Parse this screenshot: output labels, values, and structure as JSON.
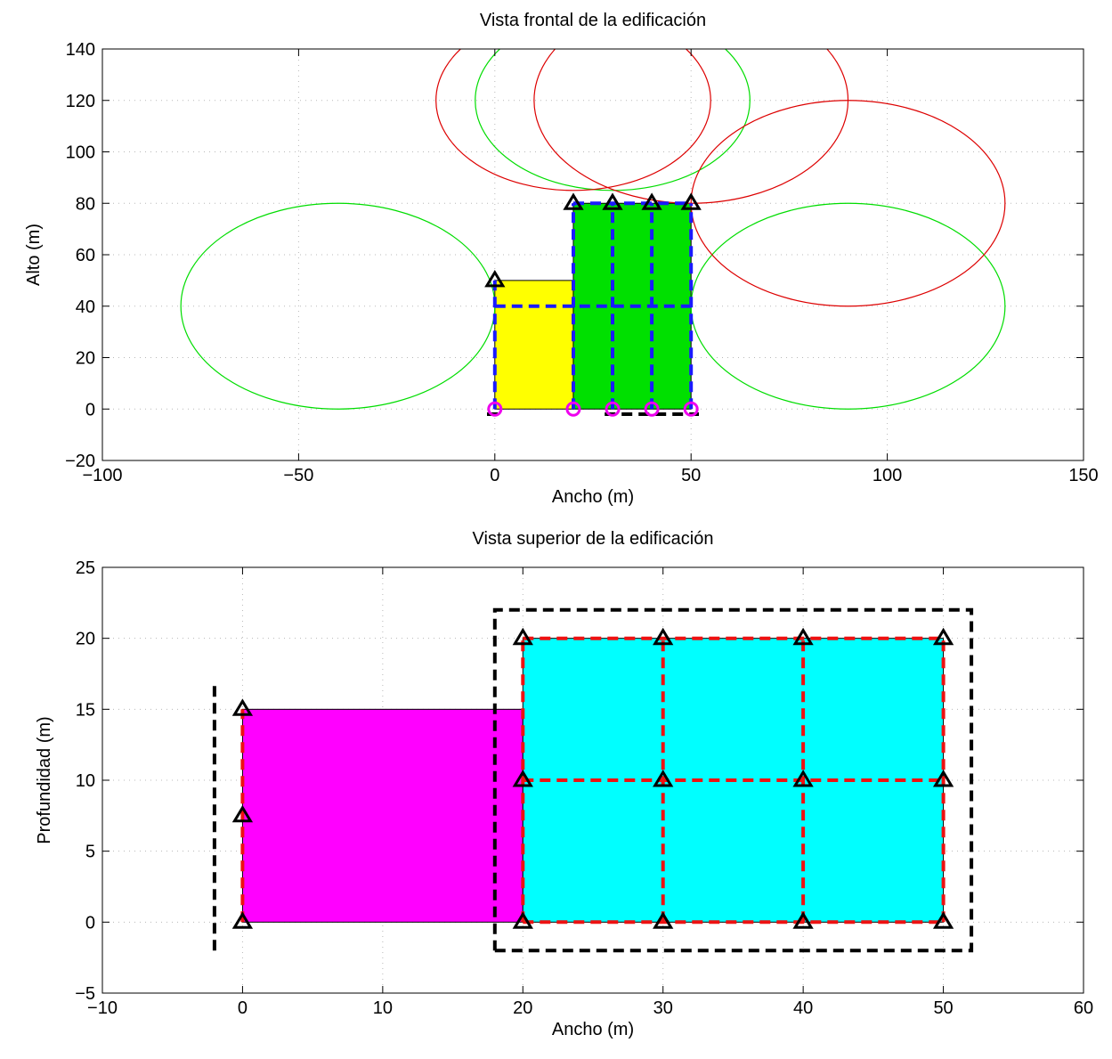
{
  "chart_data": [
    {
      "type": "scatter",
      "title": "Vista frontal de la edificación",
      "xlabel": "Ancho  (m)",
      "ylabel": "Alto  (m)",
      "xlim": [
        -100,
        150
      ],
      "ylim": [
        -20,
        140
      ],
      "xticks": [
        -100,
        -50,
        0,
        50,
        100,
        150
      ],
      "yticks": [
        -20,
        0,
        20,
        40,
        60,
        80,
        100,
        120,
        140
      ],
      "xtick_labels": [
        "−100",
        "−50",
        "0",
        "50",
        "100",
        "150"
      ],
      "ytick_labels": [
        "−20",
        "0",
        "20",
        "40",
        "60",
        "80",
        "100",
        "120",
        "140"
      ],
      "grid": true,
      "rects": [
        {
          "x": [
            0,
            20
          ],
          "y": [
            0,
            50
          ],
          "fill": "#ffff00"
        },
        {
          "x": [
            20,
            50
          ],
          "y": [
            0,
            80
          ],
          "fill": "#00e000"
        }
      ],
      "dashed_lines": [
        {
          "points": [
            [
              0,
              0
            ],
            [
              0,
              50
            ]
          ],
          "color": "#1a1aff"
        },
        {
          "points": [
            [
              0,
              40
            ],
            [
              50,
              40
            ]
          ],
          "color": "#1a1aff"
        },
        {
          "points": [
            [
              20,
              0
            ],
            [
              20,
              80
            ]
          ],
          "color": "#1a1aff"
        },
        {
          "points": [
            [
              30,
              0
            ],
            [
              30,
              80
            ]
          ],
          "color": "#1a1aff"
        },
        {
          "points": [
            [
              40,
              0
            ],
            [
              40,
              80
            ]
          ],
          "color": "#1a1aff"
        },
        {
          "points": [
            [
              50,
              0
            ],
            [
              50,
              80
            ]
          ],
          "color": "#1a1aff"
        },
        {
          "points": [
            [
              20,
              80
            ],
            [
              50,
              80
            ]
          ],
          "color": "#1a1aff"
        },
        {
          "points": [
            [
              -2,
              -2
            ],
            [
              1,
              -2
            ]
          ],
          "color": "#000000"
        },
        {
          "points": [
            [
              28,
              -2
            ],
            [
              52,
              -2
            ]
          ],
          "color": "#000000"
        }
      ],
      "ellipses": [
        {
          "cx": -40,
          "cy": 40,
          "rx": 40,
          "ry": 40,
          "color": "#00dd00"
        },
        {
          "cx": 90,
          "cy": 40,
          "rx": 40,
          "ry": 40,
          "color": "#00dd00"
        },
        {
          "cx": 30,
          "cy": 120,
          "rx": 35,
          "ry": 35,
          "color": "#00dd00"
        },
        {
          "cx": 20,
          "cy": 120,
          "rx": 35,
          "ry": 35,
          "color": "#dd0000"
        },
        {
          "cx": 50,
          "cy": 120,
          "rx": 40,
          "ry": 40,
          "color": "#dd0000"
        },
        {
          "cx": 90,
          "cy": 80,
          "rx": 40,
          "ry": 40,
          "color": "#dd0000"
        }
      ],
      "circle_markers": {
        "x": [
          0,
          20,
          30,
          40,
          50
        ],
        "y": [
          0,
          0,
          0,
          0,
          0
        ],
        "color": "#ee00ee"
      },
      "triangle_markers": {
        "x": [
          0,
          20,
          30,
          40,
          50
        ],
        "y": [
          50,
          80,
          80,
          80,
          80
        ],
        "color": "#000000"
      }
    },
    {
      "type": "scatter",
      "title": "Vista superior de la edificación",
      "xlabel": "Ancho  (m)",
      "ylabel": "Profundidad  (m)",
      "xlim": [
        -10,
        60
      ],
      "ylim": [
        -5,
        25
      ],
      "xticks": [
        -10,
        0,
        10,
        20,
        30,
        40,
        50,
        60
      ],
      "yticks": [
        -5,
        0,
        5,
        10,
        15,
        20,
        25
      ],
      "xtick_labels": [
        "−10",
        "0",
        "10",
        "20",
        "30",
        "40",
        "50",
        "60"
      ],
      "ytick_labels": [
        "−5",
        "0",
        "5",
        "10",
        "15",
        "20",
        "25"
      ],
      "grid": true,
      "rects": [
        {
          "x": [
            0,
            20
          ],
          "y": [
            0,
            15
          ],
          "fill": "#ff00ff"
        },
        {
          "x": [
            20,
            50
          ],
          "y": [
            0,
            20
          ],
          "fill": "#00ffff"
        }
      ],
      "dashed_lines": [
        {
          "points": [
            [
              -2,
              -2
            ],
            [
              -2,
              17
            ]
          ],
          "color": "#000000"
        },
        {
          "points": [
            [
              18,
              -2
            ],
            [
              52,
              -2
            ],
            [
              52,
              22
            ],
            [
              18,
              22
            ],
            [
              18,
              -2
            ]
          ],
          "color": "#000000"
        },
        {
          "points": [
            [
              0,
              0
            ],
            [
              0,
              15
            ]
          ],
          "color": "#ee1111"
        },
        {
          "points": [
            [
              20,
              0
            ],
            [
              50,
              0
            ]
          ],
          "color": "#ee1111"
        },
        {
          "points": [
            [
              20,
              10
            ],
            [
              50,
              10
            ]
          ],
          "color": "#ee1111"
        },
        {
          "points": [
            [
              20,
              20
            ],
            [
              50,
              20
            ]
          ],
          "color": "#ee1111"
        },
        {
          "points": [
            [
              20,
              0
            ],
            [
              20,
              20
            ]
          ],
          "color": "#ee1111"
        },
        {
          "points": [
            [
              30,
              0
            ],
            [
              30,
              20
            ]
          ],
          "color": "#ee1111"
        },
        {
          "points": [
            [
              40,
              0
            ],
            [
              40,
              20
            ]
          ],
          "color": "#ee1111"
        },
        {
          "points": [
            [
              50,
              0
            ],
            [
              50,
              20
            ]
          ],
          "color": "#ee1111"
        }
      ],
      "triangle_markers": {
        "x": [
          0,
          0,
          0,
          20,
          20,
          20,
          30,
          30,
          30,
          40,
          40,
          40,
          50,
          50,
          50
        ],
        "y": [
          0,
          7.5,
          15,
          0,
          10,
          20,
          0,
          10,
          20,
          0,
          10,
          20,
          0,
          10,
          20
        ],
        "color": "#000000"
      }
    }
  ]
}
